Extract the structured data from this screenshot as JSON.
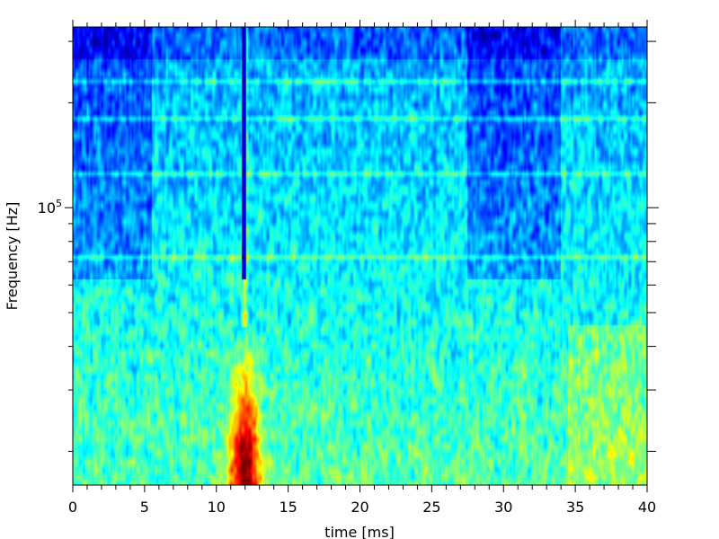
{
  "chart_data": {
    "type": "heatmap",
    "title": "",
    "xlabel": "time [ms]",
    "ylabel": "Frequency [Hz]",
    "xlim": [
      0,
      40
    ],
    "ylim": [
      16000,
      330000
    ],
    "y_scale": "log",
    "colormap": "jet",
    "grid": false,
    "x_ticks": [
      0,
      5,
      10,
      15,
      20,
      25,
      30,
      35,
      40
    ],
    "x_tick_labels": [
      "0",
      "5",
      "10",
      "15",
      "20",
      "25",
      "30",
      "35",
      "40"
    ],
    "y_major_ticks": [
      100000
    ],
    "y_major_tick_labels": [
      {
        "base": "10",
        "exp": "5"
      }
    ],
    "features": {
      "vertical_dark_line_ms": 11.9,
      "hot_spot": {
        "time_ms": 12.0,
        "freq_hz_upper": 35000
      },
      "horizontal_bands_hz": [
        72000,
        125000,
        180000,
        230000
      ],
      "quiet_segments_ms": [
        [
          0,
          5.5
        ],
        [
          27.5,
          34.0
        ]
      ]
    }
  }
}
